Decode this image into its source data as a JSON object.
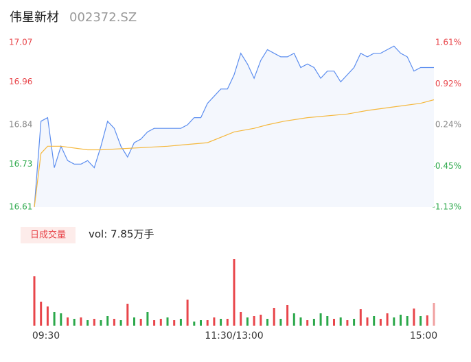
{
  "chart_data": {
    "type": "intraday",
    "title": "伟星新材",
    "subtitle": "002372.SZ",
    "xlim": [
      0,
      240
    ],
    "xticks": [
      {
        "value": 0,
        "label": "09:30"
      },
      {
        "value": 120,
        "label": "11:30/13:00"
      },
      {
        "value": 240,
        "label": "15:00"
      }
    ],
    "ylim": [
      16.61,
      17.07
    ],
    "yticks": [
      17.07,
      16.96,
      16.84,
      16.73,
      16.61
    ],
    "y2lim": [
      -1.13,
      1.61
    ],
    "y2ticks": [
      {
        "value": 1.61,
        "label": "1.61%"
      },
      {
        "value": 0.92,
        "label": "0.92%"
      },
      {
        "value": 0.24,
        "label": "0.24%"
      },
      {
        "value": -0.45,
        "label": "-0.45%"
      },
      {
        "value": -1.13,
        "label": "-1.13%"
      }
    ],
    "up_color": "#e8454a",
    "down_color": "#2ba84a",
    "flat_color": "#888888",
    "series": [
      {
        "color": "#5b8def",
        "x": [
          0,
          4,
          8,
          12,
          16,
          20,
          24,
          28,
          32,
          36,
          40,
          44,
          48,
          52,
          56,
          60,
          64,
          68,
          72,
          76,
          80,
          84,
          88,
          92,
          96,
          100,
          104,
          108,
          112,
          116,
          120,
          124,
          128,
          132,
          136,
          140,
          144,
          148,
          152,
          156,
          160,
          164,
          168,
          172,
          176,
          180,
          184,
          188,
          192,
          196,
          200,
          204,
          208,
          212,
          216,
          220,
          224,
          228,
          232,
          236,
          240
        ],
        "values": [
          16.61,
          16.85,
          16.86,
          16.72,
          16.78,
          16.74,
          16.73,
          16.73,
          16.74,
          16.72,
          16.78,
          16.85,
          16.83,
          16.78,
          16.75,
          16.79,
          16.8,
          16.82,
          16.83,
          16.83,
          16.83,
          16.83,
          16.83,
          16.84,
          16.86,
          16.86,
          16.9,
          16.92,
          16.94,
          16.94,
          16.98,
          17.04,
          17.01,
          16.97,
          17.02,
          17.05,
          17.04,
          17.03,
          17.03,
          17.04,
          17.0,
          17.01,
          17.0,
          16.97,
          16.99,
          16.99,
          16.96,
          16.98,
          17.0,
          17.04,
          17.03,
          17.04,
          17.04,
          17.05,
          17.06,
          17.04,
          17.03,
          16.99,
          17.0,
          17.0,
          17.0
        ]
      },
      {
        "color": "#f5b83d",
        "x": [
          0,
          4,
          8,
          16,
          32,
          40,
          80,
          104,
          120,
          132,
          140,
          150,
          164,
          188,
          200,
          216,
          232,
          240
        ],
        "values": [
          16.61,
          16.76,
          16.78,
          16.78,
          16.77,
          16.77,
          16.78,
          16.79,
          16.82,
          16.83,
          16.84,
          16.85,
          16.86,
          16.87,
          16.88,
          16.89,
          16.9,
          16.91
        ]
      }
    ],
    "volume": {
      "button": "日成交量",
      "label": "vol: 7.85万手",
      "x": [
        0,
        4,
        8,
        12,
        16,
        20,
        24,
        28,
        32,
        36,
        40,
        44,
        48,
        52,
        56,
        60,
        64,
        68,
        72,
        76,
        80,
        84,
        88,
        92,
        96,
        100,
        104,
        108,
        112,
        116,
        120,
        124,
        128,
        132,
        136,
        140,
        144,
        148,
        152,
        156,
        160,
        164,
        168,
        172,
        176,
        180,
        184,
        188,
        192,
        196,
        200,
        204,
        208,
        212,
        216,
        220,
        224,
        228,
        232,
        236,
        240
      ],
      "values": [
        7200,
        3500,
        2800,
        2000,
        1800,
        1200,
        1000,
        1200,
        800,
        1000,
        800,
        1400,
        1000,
        800,
        3200,
        1200,
        1000,
        2000,
        800,
        1000,
        1200,
        800,
        1000,
        3800,
        600,
        800,
        800,
        1200,
        1000,
        1000,
        9700,
        2000,
        1200,
        1400,
        1600,
        1000,
        2600,
        1000,
        3000,
        1800,
        1200,
        800,
        1000,
        1800,
        1400,
        1000,
        1200,
        800,
        1000,
        2400,
        1200,
        1400,
        1000,
        1800,
        1200,
        1600,
        1400,
        2500,
        1400,
        1500,
        3300
      ],
      "colors": [
        "#e8454a",
        "#e8454a",
        "#e8454a",
        "#2ba84a",
        "#2ba84a",
        "#e8454a",
        "#2ba84a",
        "#e8454a",
        "#2ba84a",
        "#e8454a",
        "#2ba84a",
        "#2ba84a",
        "#e8454a",
        "#2ba84a",
        "#e8454a",
        "#2ba84a",
        "#e8454a",
        "#2ba84a",
        "#e8454a",
        "#e8454a",
        "#2ba84a",
        "#e8454a",
        "#2ba84a",
        "#e8454a",
        "#2ba84a",
        "#2ba84a",
        "#e8454a",
        "#e8454a",
        "#2ba84a",
        "#e8454a",
        "#e8454a",
        "#e8454a",
        "#2ba84a",
        "#e8454a",
        "#e8454a",
        "#2ba84a",
        "#e8454a",
        "#2ba84a",
        "#e8454a",
        "#2ba84a",
        "#2ba84a",
        "#e8454a",
        "#2ba84a",
        "#2ba84a",
        "#2ba84a",
        "#e8454a",
        "#2ba84a",
        "#e8454a",
        "#2ba84a",
        "#e8454a",
        "#e8454a",
        "#2ba84a",
        "#e8454a",
        "#e8454a",
        "#2ba84a",
        "#2ba84a",
        "#2ba84a",
        "#e8454a",
        "#2ba84a",
        "#e8454a",
        "#f0a0a0"
      ]
    }
  }
}
